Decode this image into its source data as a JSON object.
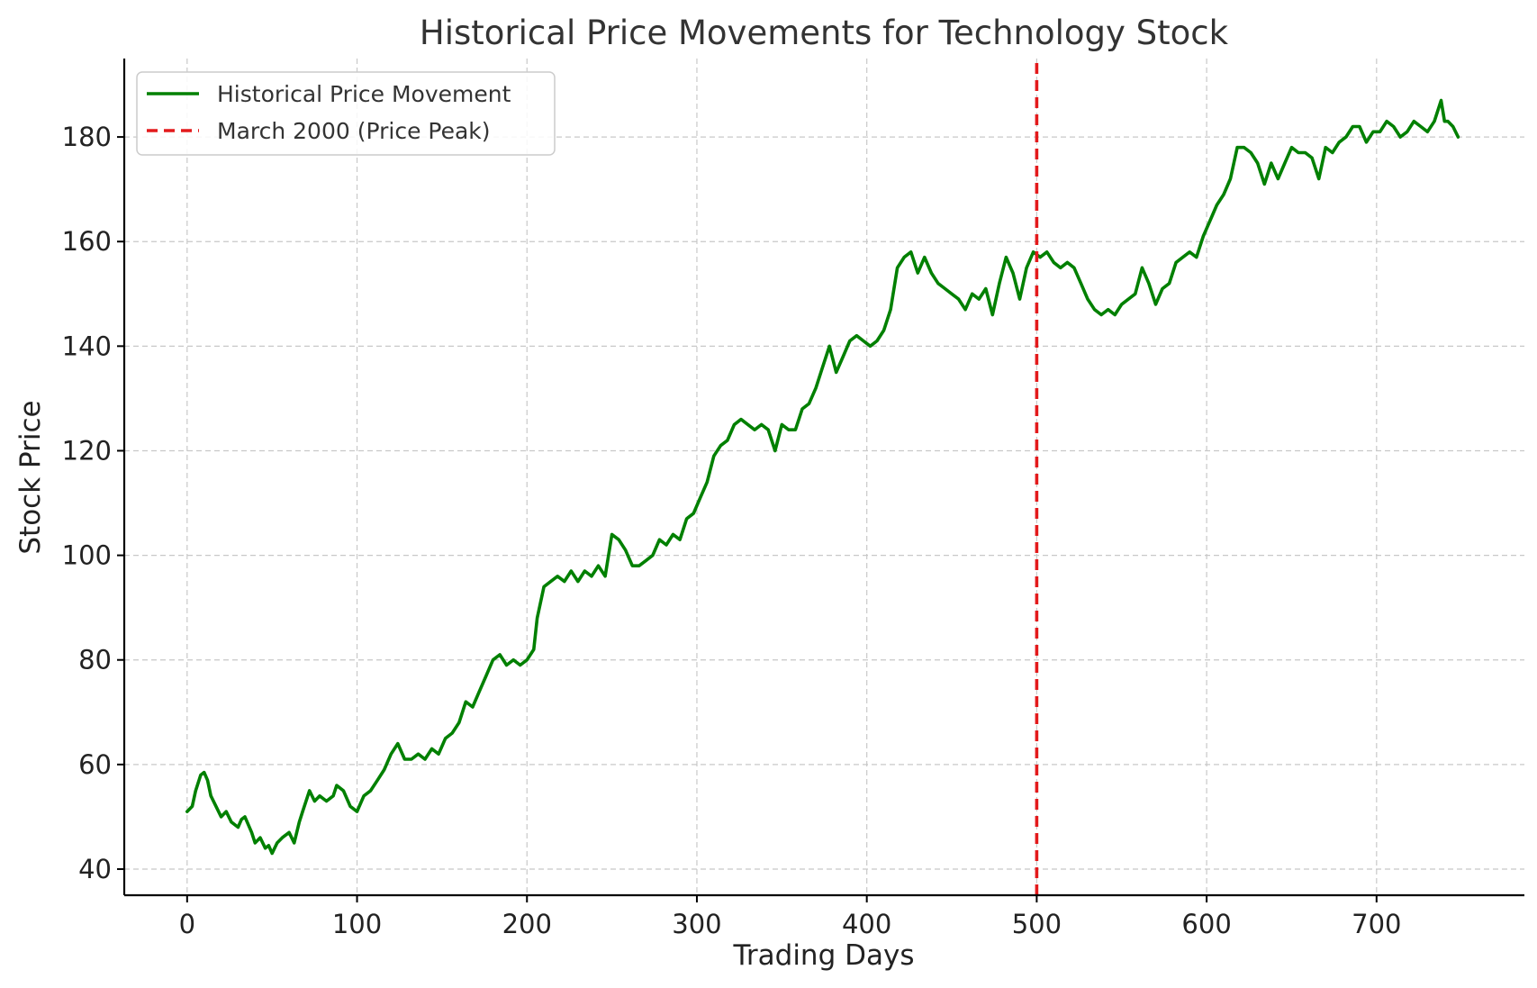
{
  "chart_data": {
    "type": "line",
    "title": "Historical Price Movements for Technology Stock",
    "xlabel": "Trading Days",
    "ylabel": "Stock Price",
    "xlim": [
      -37,
      787
    ],
    "ylim": [
      35,
      195
    ],
    "xticks": [
      0,
      100,
      200,
      300,
      400,
      500,
      600,
      700
    ],
    "yticks": [
      40,
      60,
      80,
      100,
      120,
      140,
      160,
      180
    ],
    "grid": true,
    "legend_position": "top-left",
    "series": [
      {
        "name": "Historical Price Movement",
        "color": "#008000",
        "style": "solid",
        "x": [
          0,
          3,
          5,
          8,
          10,
          12,
          14,
          17,
          20,
          23,
          26,
          30,
          32,
          34,
          38,
          40,
          43,
          46,
          48,
          50,
          53,
          56,
          60,
          63,
          66,
          68,
          72,
          75,
          78,
          82,
          86,
          88,
          92,
          96,
          100,
          104,
          108,
          112,
          116,
          120,
          124,
          128,
          132,
          136,
          140,
          144,
          148,
          152,
          156,
          160,
          164,
          168,
          172,
          176,
          180,
          184,
          188,
          192,
          196,
          200,
          204,
          206,
          210,
          214,
          218,
          222,
          226,
          230,
          234,
          238,
          242,
          246,
          250,
          254,
          258,
          262,
          266,
          270,
          274,
          278,
          282,
          286,
          290,
          294,
          298,
          302,
          306,
          310,
          314,
          318,
          322,
          326,
          330,
          334,
          338,
          342,
          346,
          350,
          354,
          358,
          362,
          366,
          370,
          374,
          378,
          382,
          386,
          390,
          394,
          398,
          402,
          406,
          410,
          414,
          418,
          422,
          426,
          430,
          434,
          438,
          442,
          446,
          450,
          454,
          458,
          462,
          466,
          470,
          474,
          478,
          482,
          486,
          490,
          494,
          498,
          502,
          506,
          510,
          514,
          518,
          522,
          526,
          530,
          534,
          538,
          542,
          546,
          550,
          554,
          558,
          562,
          566,
          570,
          574,
          578,
          582,
          586,
          590,
          594,
          598,
          602,
          606,
          610,
          614,
          618,
          622,
          626,
          630,
          634,
          638,
          642,
          646,
          650,
          654,
          658,
          662,
          666,
          670,
          674,
          678,
          682,
          686,
          690,
          694,
          698,
          702,
          706,
          710,
          714,
          718,
          722,
          726,
          730,
          734,
          738,
          740,
          742,
          745,
          748
        ],
        "y": [
          51,
          52,
          55,
          58,
          58.5,
          57,
          54,
          52,
          50,
          51,
          49,
          48,
          49.5,
          50,
          47,
          45,
          46,
          44,
          44.5,
          43,
          45,
          46,
          47,
          45,
          49,
          51,
          55,
          53,
          54,
          53,
          54,
          56,
          55,
          52,
          51,
          54,
          55,
          57,
          59,
          62,
          64,
          61,
          61,
          62,
          61,
          63,
          62,
          65,
          66,
          68,
          72,
          71,
          74,
          77,
          80,
          81,
          79,
          80,
          79,
          80,
          82,
          88,
          94,
          95,
          96,
          95,
          97,
          95,
          97,
          96,
          98,
          96,
          104,
          103,
          101,
          98,
          98,
          99,
          100,
          103,
          102,
          104,
          103,
          107,
          108,
          111,
          114,
          119,
          121,
          122,
          125,
          126,
          125,
          124,
          125,
          124,
          120,
          125,
          124,
          124,
          128,
          129,
          132,
          136,
          140,
          135,
          138,
          141,
          142,
          141,
          140,
          141,
          143,
          147,
          155,
          157,
          158,
          154,
          157,
          154,
          152,
          151,
          150,
          149,
          147,
          150,
          149,
          151,
          146,
          152,
          157,
          154,
          149,
          155,
          158,
          157,
          158,
          156,
          155,
          156,
          155,
          152,
          149,
          147,
          146,
          147,
          146,
          148,
          149,
          150,
          155,
          152,
          148,
          151,
          152,
          156,
          157,
          158,
          157,
          161,
          164,
          167,
          169,
          172,
          178,
          178,
          177,
          175,
          171,
          175,
          172,
          175,
          178,
          177,
          177,
          176,
          172,
          178,
          177,
          179,
          180,
          182,
          182,
          179,
          181,
          181,
          183,
          182,
          180,
          181,
          183,
          182,
          181,
          183,
          187,
          183,
          183,
          182,
          180
        ]
      },
      {
        "name": "March 2000 (Price Peak)",
        "color": "#e31a1c",
        "style": "dashed",
        "x": [
          500,
          500
        ],
        "y": [
          35,
          195
        ]
      }
    ]
  }
}
